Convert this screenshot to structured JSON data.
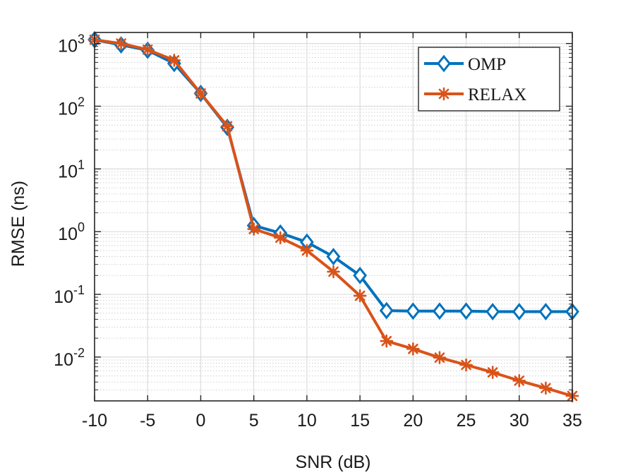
{
  "chart_data": {
    "type": "line",
    "title": "",
    "xlabel": "SNR (dB)",
    "ylabel": "RMSE (ns)",
    "yscale": "log",
    "xlim": [
      -10,
      35
    ],
    "ylim": [
      0.002,
      1500
    ],
    "grid": true,
    "legend_position": "top-right",
    "x": [
      -10,
      -7.5,
      -5,
      -2.5,
      0,
      2.5,
      5,
      7.5,
      10,
      12.5,
      15,
      17.5,
      20,
      22.5,
      25,
      27.5,
      30,
      32.5,
      35
    ],
    "series": [
      {
        "name": "OMP",
        "color": "#0072BD",
        "marker": "diamond",
        "values": [
          1150,
          950,
          780,
          480,
          160,
          46,
          1.25,
          0.95,
          0.68,
          0.4,
          0.2,
          0.055,
          0.054,
          0.054,
          0.054,
          0.053,
          0.053,
          0.053,
          0.053
        ]
      },
      {
        "name": "RELAX",
        "color": "#D95319",
        "marker": "asterisk",
        "values": [
          1150,
          1000,
          800,
          540,
          160,
          48,
          1.1,
          0.8,
          0.5,
          0.23,
          0.095,
          0.018,
          0.0135,
          0.0098,
          0.0075,
          0.0057,
          0.0042,
          0.0032,
          0.0024
        ]
      }
    ],
    "x_ticks": [
      {
        "value": -10,
        "label": "-10"
      },
      {
        "value": -5,
        "label": "-5"
      },
      {
        "value": 0,
        "label": "0"
      },
      {
        "value": 5,
        "label": "5"
      },
      {
        "value": 10,
        "label": "10"
      },
      {
        "value": 15,
        "label": "15"
      },
      {
        "value": 20,
        "label": "20"
      },
      {
        "value": 25,
        "label": "25"
      },
      {
        "value": 30,
        "label": "30"
      },
      {
        "value": 35,
        "label": "35"
      }
    ],
    "y_ticks": [
      {
        "value": 0.01,
        "base": "10",
        "exp": "-2"
      },
      {
        "value": 0.1,
        "base": "10",
        "exp": "-1"
      },
      {
        "value": 1,
        "base": "10",
        "exp": "0"
      },
      {
        "value": 10,
        "base": "10",
        "exp": "1"
      },
      {
        "value": 100,
        "base": "10",
        "exp": "2"
      },
      {
        "value": 1000,
        "base": "10",
        "exp": "3"
      }
    ]
  }
}
